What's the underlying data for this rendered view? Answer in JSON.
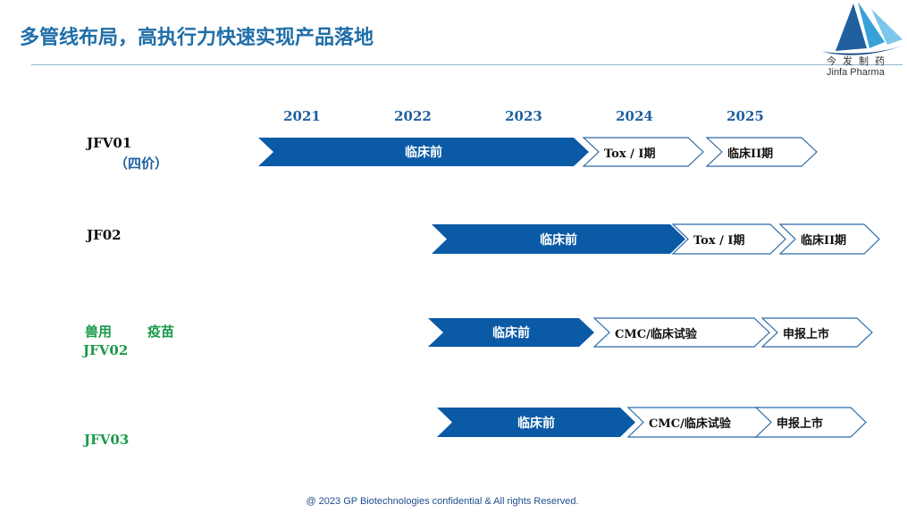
{
  "title": "多管线布局，高执行力快速实现产品落地",
  "logo": {
    "cn": "今发制药",
    "en": "Jinfa Pharma"
  },
  "years": [
    "2021",
    "2022",
    "2023",
    "2024",
    "2025"
  ],
  "rows": [
    {
      "labels": [
        "JFV01",
        "（四价）"
      ],
      "stages": [
        "临床前",
        "Tox / I期",
        "临床II期"
      ]
    },
    {
      "labels": [
        "JF02"
      ],
      "stages": [
        "临床前",
        "Tox / I期",
        "临床II期"
      ]
    },
    {
      "labels": [
        "兽用",
        "疫苗",
        "JFV02"
      ],
      "stages": [
        "临床前",
        "CMC/临床试验",
        "申报上市"
      ]
    },
    {
      "labels": [
        "JFV03"
      ],
      "stages": [
        "临床前",
        "CMC/临床试验",
        "申报上市"
      ]
    }
  ],
  "colors": {
    "accent": "#0b5aa6",
    "outline": "#2a6aa8",
    "green": "#1a9a4a"
  },
  "footer": "@ 2023 GP Biotechnologies confidential & All rights Reserved."
}
